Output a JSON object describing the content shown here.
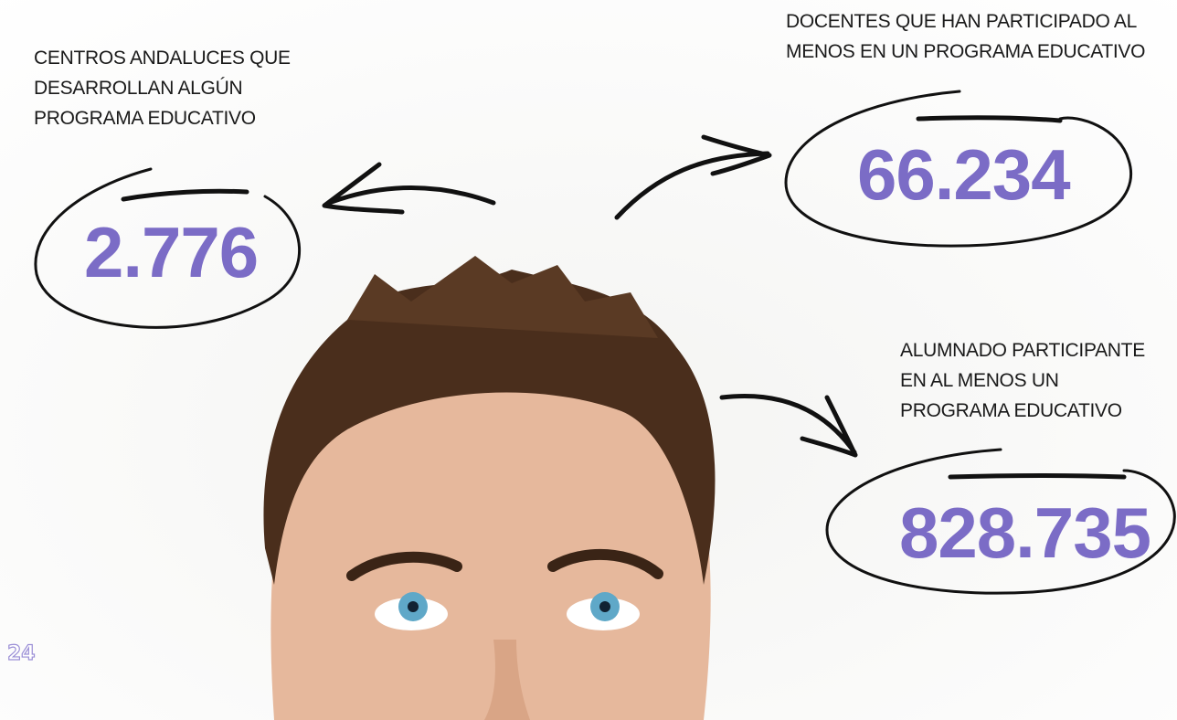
{
  "stats": [
    {
      "label": [
        "CENTROS ANDALUCES QUE",
        "DESARROLLAN ALGÚN",
        "PROGRAMA EDUCATIVO"
      ],
      "value": "2.776"
    },
    {
      "label": [
        "DOCENTES QUE HAN PARTICIPADO AL",
        "MENOS EN UN PROGRAMA EDUCATIVO"
      ],
      "value": "66.234"
    },
    {
      "label": [
        "ALUMNADO PARTICIPANTE",
        "EN AL MENOS UN",
        "PROGRAMA EDUCATIVO"
      ],
      "value": "828.735"
    }
  ],
  "page_number": "24"
}
